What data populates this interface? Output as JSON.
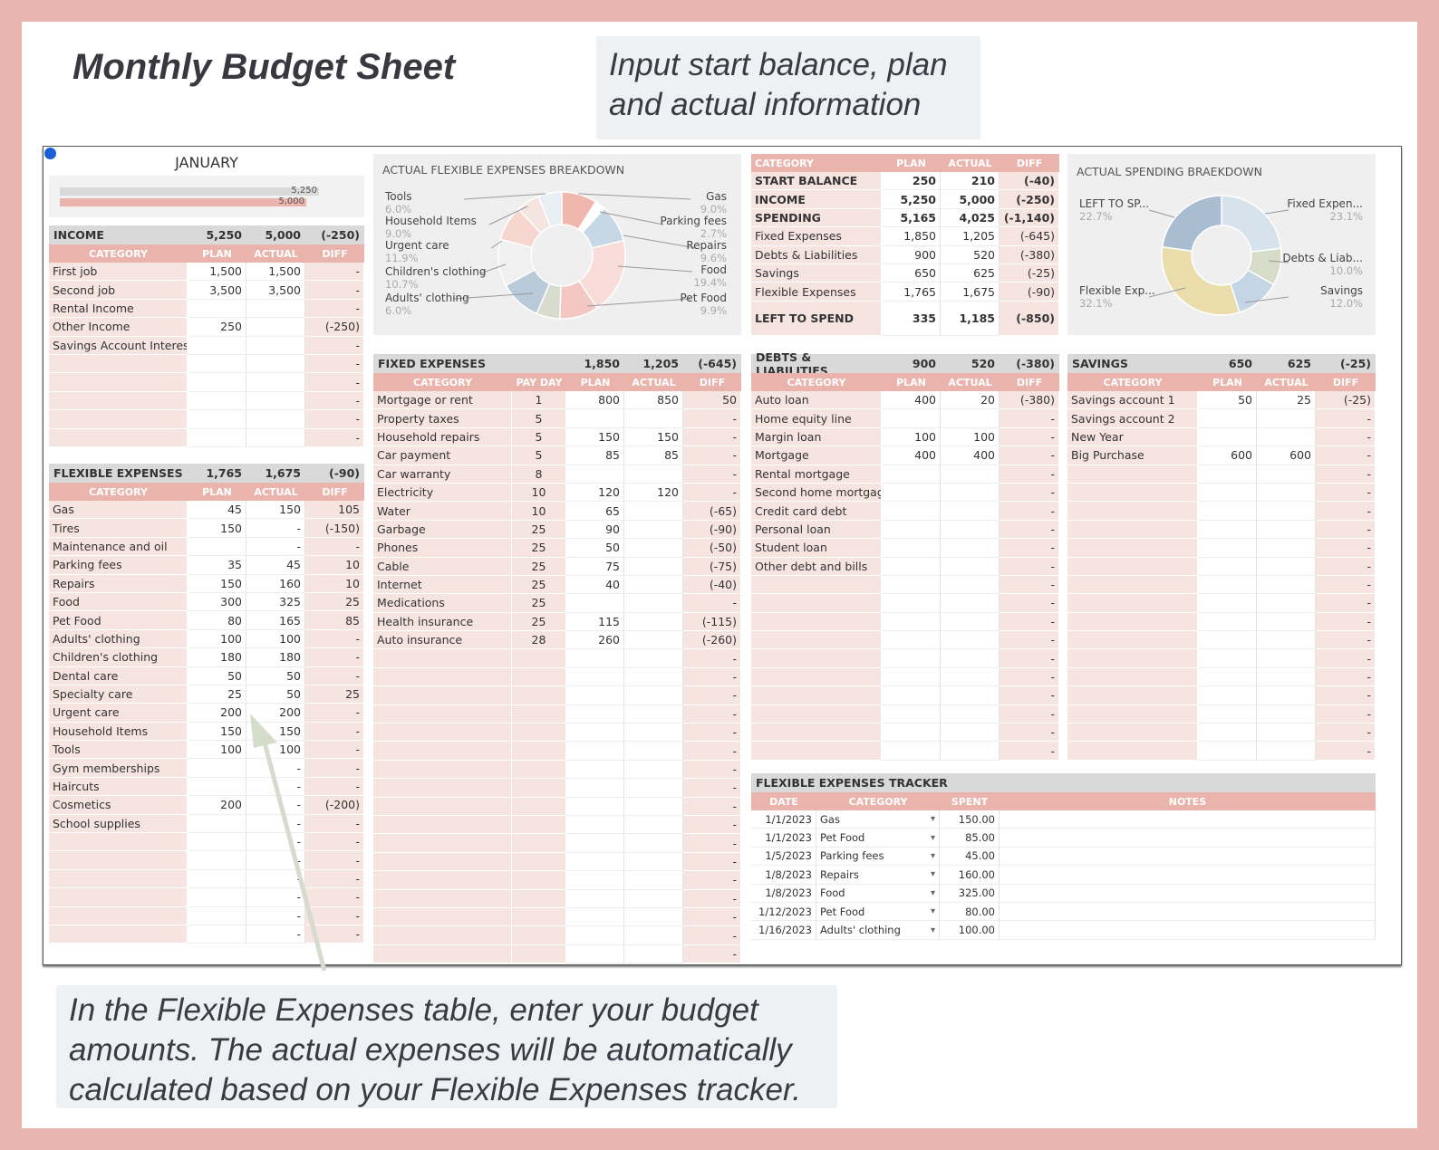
{
  "header": {
    "title": "Monthly Budget Sheet",
    "note_top": "Input start balance, plan and actual information",
    "note_bottom": "In the Flexible Expenses table, enter your budget amounts. The actual expenses will be automatically calculated based on your Flexible Expenses tracker."
  },
  "colors": {
    "pink": "#eab4ac",
    "light_pink": "#f6e4e0",
    "gray": "#d9d9d9",
    "border": "#e8b6ae"
  },
  "month": {
    "name": "JANUARY",
    "bar_plan": "5,250",
    "bar_actual": "5,000",
    "bar_actual_fraction": 0.952
  },
  "income": {
    "title": "INCOME",
    "plan": "5,250",
    "actual": "5,000",
    "diff": "(-250)",
    "cols": [
      "CATEGORY",
      "PLAN",
      "ACTUAL",
      "DIFF"
    ],
    "rows": [
      [
        "First job",
        "1,500",
        "1,500",
        "-"
      ],
      [
        "Second job",
        "3,500",
        "3,500",
        "-"
      ],
      [
        "Rental Income",
        "",
        "",
        "-"
      ],
      [
        "Other Income",
        "250",
        "",
        "(-250)"
      ],
      [
        "Savings Account Interest",
        "",
        "",
        "-"
      ],
      [
        "",
        "",
        "",
        "-"
      ],
      [
        "",
        "",
        "",
        "-"
      ],
      [
        "",
        "",
        "",
        "-"
      ],
      [
        "",
        "",
        "",
        "-"
      ],
      [
        "",
        "",
        "",
        "-"
      ]
    ]
  },
  "flexible": {
    "title": "FLEXIBLE EXPENSES",
    "plan": "1,765",
    "actual": "1,675",
    "diff": "(-90)",
    "cols": [
      "CATEGORY",
      "PLAN",
      "ACTUAL",
      "DIFF"
    ],
    "rows": [
      [
        "Gas",
        "45",
        "150",
        "105"
      ],
      [
        "Tires",
        "150",
        "-",
        "(-150)"
      ],
      [
        "Maintenance and oil",
        "",
        "-",
        "-"
      ],
      [
        "Parking fees",
        "35",
        "45",
        "10"
      ],
      [
        "Repairs",
        "150",
        "160",
        "10"
      ],
      [
        "Food",
        "300",
        "325",
        "25"
      ],
      [
        "Pet Food",
        "80",
        "165",
        "85"
      ],
      [
        "Adults' clothing",
        "100",
        "100",
        "-"
      ],
      [
        "Children's clothing",
        "180",
        "180",
        "-"
      ],
      [
        "Dental care",
        "50",
        "50",
        "-"
      ],
      [
        "Specialty care",
        "25",
        "50",
        "25"
      ],
      [
        "Urgent care",
        "200",
        "200",
        "-"
      ],
      [
        "Household Items",
        "150",
        "150",
        "-"
      ],
      [
        "Tools",
        "100",
        "100",
        "-"
      ],
      [
        "Gym memberships",
        "",
        "-",
        "-"
      ],
      [
        "Haircuts",
        "",
        "-",
        "-"
      ],
      [
        "Cosmetics",
        "200",
        "-",
        "(-200)"
      ],
      [
        "School supplies",
        "",
        "-",
        "-"
      ],
      [
        "",
        "",
        "-",
        "-"
      ],
      [
        "",
        "",
        "-",
        "-"
      ],
      [
        "",
        "",
        "-",
        "-"
      ],
      [
        "",
        "",
        "-",
        "-"
      ],
      [
        "",
        "",
        "-",
        "-"
      ],
      [
        "",
        "",
        "-",
        "-"
      ]
    ]
  },
  "flex_chart": {
    "title": "ACTUAL FLEXIBLE EXPENSES BREAKDOWN",
    "left_labels": [
      [
        "Tools",
        "6.0%"
      ],
      [
        "Household Items",
        "9.0%"
      ],
      [
        "Urgent care",
        "11.9%"
      ],
      [
        "Children's clothing",
        "10.7%"
      ],
      [
        "Adults' clothing",
        "6.0%"
      ]
    ],
    "right_labels": [
      [
        "Gas",
        "9.0%"
      ],
      [
        "Parking fees",
        "2.7%"
      ],
      [
        "Repairs",
        "9.6%"
      ],
      [
        "Food",
        "19.4%"
      ],
      [
        "Pet Food",
        "9.9%"
      ]
    ]
  },
  "summary": {
    "cols": [
      "CATEGORY",
      "PLAN",
      "ACTUAL",
      "DIFF"
    ],
    "rows": [
      [
        "START BALANCE",
        "250",
        "210",
        "(-40)",
        true
      ],
      [
        "INCOME",
        "5,250",
        "5,000",
        "(-250)",
        true
      ],
      [
        "SPENDING",
        "5,165",
        "4,025",
        "(-1,140)",
        true
      ],
      [
        "Fixed Expenses",
        "1,850",
        "1,205",
        "(-645)",
        false
      ],
      [
        "Debts & Liabilities",
        "900",
        "520",
        "(-380)",
        false
      ],
      [
        "Savings",
        "650",
        "625",
        "(-25)",
        false
      ],
      [
        "Flexible Expenses",
        "1,765",
        "1,675",
        "(-90)",
        false
      ]
    ],
    "left_label": "LEFT TO SPEND",
    "left_plan": "335",
    "left_actual": "1,185",
    "left_diff": "(-850)"
  },
  "spend_chart": {
    "title": "ACTUAL SPENDING BRAEKDOWN",
    "labels": [
      [
        "LEFT TO SP...",
        "22.7%"
      ],
      [
        "Fixed Expen...",
        "23.1%"
      ],
      [
        "Debts & Liab...",
        "10.0%"
      ],
      [
        "Flexible Exp...",
        "32.1%"
      ],
      [
        "Savings",
        "12.0%"
      ]
    ]
  },
  "fixed": {
    "title": "FIXED EXPENSES",
    "plan": "1,850",
    "actual": "1,205",
    "diff": "(-645)",
    "cols": [
      "CATEGORY",
      "PAY DAY",
      "PLAN",
      "ACTUAL",
      "DIFF"
    ],
    "rows": [
      [
        "Mortgage or rent",
        "1",
        "800",
        "850",
        "50"
      ],
      [
        "Property taxes",
        "5",
        "",
        "",
        "-"
      ],
      [
        "Household repairs",
        "5",
        "150",
        "150",
        "-"
      ],
      [
        "Car payment",
        "5",
        "85",
        "85",
        "-"
      ],
      [
        "Car warranty",
        "8",
        "",
        "",
        "-"
      ],
      [
        "Electricity",
        "10",
        "120",
        "120",
        "-"
      ],
      [
        "Water",
        "10",
        "65",
        "",
        "(-65)"
      ],
      [
        "Garbage",
        "25",
        "90",
        "",
        "(-90)"
      ],
      [
        "Phones",
        "25",
        "50",
        "",
        "(-50)"
      ],
      [
        "Cable",
        "25",
        "75",
        "",
        "(-75)"
      ],
      [
        "Internet",
        "25",
        "40",
        "",
        "(-40)"
      ],
      [
        "Medications",
        "25",
        "",
        "",
        "-"
      ],
      [
        "Health insurance",
        "25",
        "115",
        "",
        "(-115)"
      ],
      [
        "Auto insurance",
        "28",
        "260",
        "",
        "(-260)"
      ],
      [
        "",
        "",
        "",
        "",
        "-"
      ],
      [
        "",
        "",
        "",
        "",
        "-"
      ],
      [
        "",
        "",
        "",
        "",
        "-"
      ],
      [
        "",
        "",
        "",
        "",
        "-"
      ],
      [
        "",
        "",
        "",
        "",
        "-"
      ],
      [
        "",
        "",
        "",
        "",
        "-"
      ],
      [
        "",
        "",
        "",
        "",
        "-"
      ],
      [
        "",
        "",
        "",
        "",
        "-"
      ],
      [
        "",
        "",
        "",
        "",
        "-"
      ],
      [
        "",
        "",
        "",
        "",
        "-"
      ],
      [
        "",
        "",
        "",
        "",
        "-"
      ],
      [
        "",
        "",
        "",
        "",
        "-"
      ],
      [
        "",
        "",
        "",
        "",
        "-"
      ],
      [
        "",
        "",
        "",
        "",
        "-"
      ],
      [
        "",
        "",
        "",
        "",
        "-"
      ],
      [
        "",
        "",
        "",
        "",
        "-"
      ],
      [
        "",
        "",
        "",
        "",
        "-"
      ]
    ]
  },
  "debts": {
    "title": "DEBTS & LIABILITIES",
    "plan": "900",
    "actual": "520",
    "diff": "(-380)",
    "cols": [
      "CATEGORY",
      "PLAN",
      "ACTUAL",
      "DIFF"
    ],
    "rows": [
      [
        "Auto loan",
        "400",
        "20",
        "(-380)"
      ],
      [
        "Home equity line",
        "",
        "",
        "-"
      ],
      [
        "Margin loan",
        "100",
        "100",
        "-"
      ],
      [
        "Mortgage",
        "400",
        "400",
        "-"
      ],
      [
        "Rental mortgage",
        "",
        "",
        "-"
      ],
      [
        "Second home mortgage",
        "",
        "",
        "-"
      ],
      [
        "Credit card debt",
        "",
        "",
        "-"
      ],
      [
        "Personal loan",
        "",
        "",
        "-"
      ],
      [
        "Student loan",
        "",
        "",
        "-"
      ],
      [
        "Other debt and bills",
        "",
        "",
        "-"
      ],
      [
        "",
        "",
        "",
        "-"
      ],
      [
        "",
        "",
        "",
        "-"
      ],
      [
        "",
        "",
        "",
        "-"
      ],
      [
        "",
        "",
        "",
        "-"
      ],
      [
        "",
        "",
        "",
        "-"
      ],
      [
        "",
        "",
        "",
        "-"
      ],
      [
        "",
        "",
        "",
        "-"
      ],
      [
        "",
        "",
        "",
        "-"
      ],
      [
        "",
        "",
        "",
        "-"
      ],
      [
        "",
        "",
        "",
        "-"
      ]
    ]
  },
  "savings": {
    "title": "SAVINGS",
    "plan": "650",
    "actual": "625",
    "diff": "(-25)",
    "cols": [
      "CATEGORY",
      "PLAN",
      "ACTUAL",
      "DIFF"
    ],
    "rows": [
      [
        "Savings account 1",
        "50",
        "25",
        "(-25)"
      ],
      [
        "Savings account 2",
        "",
        "",
        "-"
      ],
      [
        "New Year",
        "",
        "",
        "-"
      ],
      [
        "Big Purchase",
        "600",
        "600",
        "-"
      ],
      [
        "",
        "",
        "",
        "-"
      ],
      [
        "",
        "",
        "",
        "-"
      ],
      [
        "",
        "",
        "",
        "-"
      ],
      [
        "",
        "",
        "",
        "-"
      ],
      [
        "",
        "",
        "",
        "-"
      ],
      [
        "",
        "",
        "",
        "-"
      ],
      [
        "",
        "",
        "",
        "-"
      ],
      [
        "",
        "",
        "",
        "-"
      ],
      [
        "",
        "",
        "",
        "-"
      ],
      [
        "",
        "",
        "",
        "-"
      ],
      [
        "",
        "",
        "",
        "-"
      ],
      [
        "",
        "",
        "",
        "-"
      ],
      [
        "",
        "",
        "",
        "-"
      ],
      [
        "",
        "",
        "",
        "-"
      ],
      [
        "",
        "",
        "",
        "-"
      ],
      [
        "",
        "",
        "",
        "-"
      ]
    ]
  },
  "tracker": {
    "title": "FLEXIBLE EXPENSES TRACKER",
    "cols": [
      "DATE",
      "CATEGORY",
      "SPENT",
      "NOTES"
    ],
    "rows": [
      [
        "1/1/2023",
        "Gas",
        "150.00"
      ],
      [
        "1/1/2023",
        "Pet Food",
        "85.00"
      ],
      [
        "1/5/2023",
        "Parking fees",
        "45.00"
      ],
      [
        "1/8/2023",
        "Repairs",
        "160.00"
      ],
      [
        "1/8/2023",
        "Food",
        "325.00"
      ],
      [
        "1/12/2023",
        "Pet Food",
        "80.00"
      ],
      [
        "1/16/2023",
        "Adults' clothing",
        "100.00"
      ]
    ]
  }
}
